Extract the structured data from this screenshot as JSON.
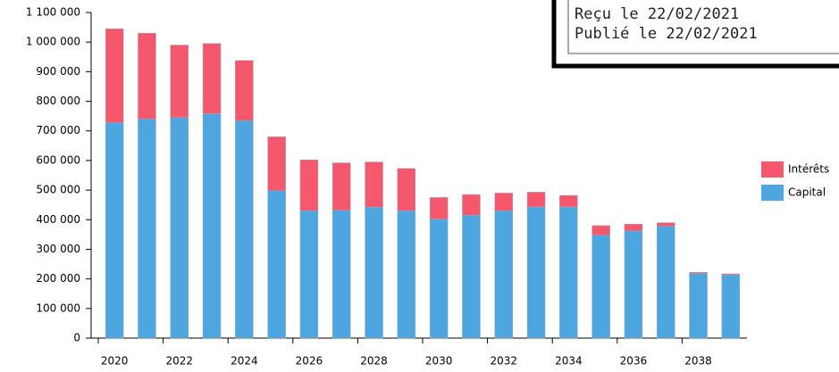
{
  "chart_data": {
    "type": "stacked_bar",
    "categories": [
      "2020",
      null,
      "2022",
      null,
      "2024",
      null,
      "2026",
      null,
      "2028",
      null,
      "2030",
      null,
      "2032",
      null,
      "2034",
      null,
      "2036",
      null,
      "2038",
      null
    ],
    "series": [
      {
        "name": "Capital",
        "color": "#4da6df",
        "values": [
          728000,
          740000,
          745000,
          758000,
          735000,
          498000,
          430000,
          432000,
          442000,
          430000,
          402000,
          415000,
          430000,
          443000,
          443000,
          348000,
          362000,
          378000,
          218000,
          213000
        ]
      },
      {
        "name": "Intérêts",
        "color": "#f5576c",
        "values": [
          317000,
          290000,
          245000,
          237000,
          203000,
          182000,
          172000,
          160000,
          153000,
          143000,
          73000,
          70000,
          60000,
          50000,
          39000,
          32000,
          23000,
          12000,
          4000,
          4000
        ]
      }
    ],
    "ylim": [
      0,
      1100000
    ],
    "yticks": [
      0,
      {
        "value": 100000,
        "label": "100 000"
      },
      {
        "value": 200000,
        "label": "200 000"
      },
      {
        "value": 300000,
        "label": "300 000"
      },
      {
        "value": 400000,
        "label": "400 000"
      },
      {
        "value": 500000,
        "label": "500 000"
      },
      {
        "value": 600000,
        "label": "600 000"
      },
      {
        "value": 700000,
        "label": "700 000"
      },
      {
        "value": 800000,
        "label": "800 000"
      },
      {
        "value": 900000,
        "label": "900 000"
      },
      {
        "value": 1000000,
        "label": "1 000 000"
      },
      {
        "value": 1100000,
        "label": "1 100 000"
      }
    ],
    "legend": "right"
  },
  "stamp": {
    "lines": [
      "Reçu le 22/02/2021",
      "Publié le 22/02/2021"
    ]
  }
}
